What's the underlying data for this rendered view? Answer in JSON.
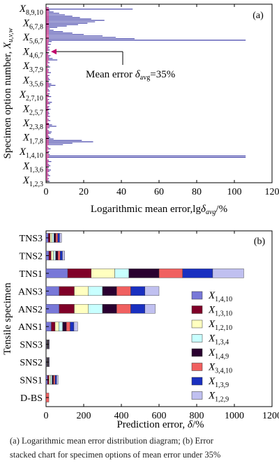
{
  "chart_data": [
    {
      "panel_label": "(a)",
      "type": "bar",
      "orientation": "horizontal",
      "xlabel": "Logarithmic mean error,lgδavg/%",
      "xlabel_parts": {
        "main": "Logarithmic mean error,lg",
        "sym": "δ",
        "sub": "avg",
        "unit": "/%"
      },
      "ylabel": "Specimen option number, Xu,v,w",
      "ylabel_parts": {
        "main": "Specimen option number, ",
        "sym": "X",
        "sub": "u,v,w"
      },
      "xlim": [
        0,
        120
      ],
      "xticks": [
        "0",
        "20",
        "40",
        "60",
        "80",
        "100",
        "120"
      ],
      "ytick_labels": [
        {
          "sym": "X",
          "sub": "1,2,3"
        },
        {
          "sym": "X",
          "sub": "1,3,6"
        },
        {
          "sym": "X",
          "sub": "1,4,10"
        },
        {
          "sym": "X",
          "sub": "1,7,8"
        },
        {
          "sym": "X",
          "sub": "2,3,8"
        },
        {
          "sym": "X",
          "sub": "2,5,7"
        },
        {
          "sym": "X",
          "sub": "2,7,10"
        },
        {
          "sym": "X",
          "sub": "3,5,6"
        },
        {
          "sym": "X",
          "sub": "3,7,9"
        },
        {
          "sym": "X",
          "sub": "4,6,7"
        },
        {
          "sym": "X",
          "sub": "5,6,7"
        },
        {
          "sym": "X",
          "sub": "6,7,8"
        },
        {
          "sym": "X",
          "sub": "8,9,10"
        }
      ],
      "annotation": {
        "text": "Mean error  δavg=35%",
        "main": "Mean error  ",
        "sym": "δ",
        "sub": "avg",
        "rest": "=35%",
        "arrow_target_value": 1.5
      },
      "bar_color": "#3a3aa6",
      "highlight_color": "#c0006a",
      "values": [
        2,
        1.2,
        1.5,
        0.8,
        2.2,
        1.4,
        0.9,
        1.8,
        2.6,
        1.3,
        0.7,
        2.3,
        1.6,
        1,
        2.8,
        1.5,
        0.6,
        106,
        106,
        2,
        1.2,
        1.7,
        0.9,
        2.4,
        1.3,
        0.8,
        9,
        14,
        25,
        19,
        4,
        2.2,
        1.6,
        1.1,
        2.5,
        3,
        1.4,
        0.8,
        1.9,
        5.5,
        3.2,
        1.6,
        0.9,
        2.3,
        1.4,
        0.7,
        2.1,
        1.2,
        1.8,
        1.5,
        0.9,
        2.4,
        1.3,
        1.7,
        0.6,
        2.2,
        3.1,
        1.1,
        1.6,
        0.8,
        2.7,
        1.3,
        1.9,
        0.7,
        2,
        1.5,
        1,
        2.3,
        5,
        2.8,
        1.4,
        0.9,
        2.1,
        1.6,
        1.1,
        1.8,
        0.6,
        2.6,
        1.3,
        1.5,
        0.9,
        2.2,
        1.4,
        0.8,
        1.9,
        1.2,
        6,
        3.5,
        1.7,
        2.4,
        1.1,
        1.6,
        0.7,
        2,
        1.3,
        1.8,
        0.9,
        2.5,
        1.4,
        3,
        106,
        47,
        37,
        30,
        20,
        14,
        9,
        4,
        2,
        6,
        11,
        17,
        22,
        26,
        31,
        24,
        18,
        14,
        10,
        7,
        4,
        2,
        46,
        1.5
      ],
      "highlight_values": [
        1.3,
        1,
        1.2,
        0.8,
        1.4,
        1.1,
        0.9,
        1.3,
        1.5,
        1,
        0.8,
        1.4,
        1.2,
        0.9,
        1.5,
        1.1,
        0.8,
        1.5,
        1.5,
        1.3,
        1,
        1.2,
        0.9,
        1.4,
        1.1,
        0.8,
        1.5,
        1.5,
        1.5,
        1.5,
        1.3,
        1.4,
        1.2,
        1,
        1.5,
        1.5,
        1.1,
        0.8,
        1.3,
        1.5,
        1.5,
        1.2,
        0.9,
        1.4,
        1.1,
        0.8,
        1.3,
        1,
        1.2,
        1.1,
        0.9,
        1.4,
        1.1,
        1.2,
        0.7,
        1.4,
        1.5,
        1,
        1.2,
        0.8,
        1.5,
        1.1,
        1.3,
        0.8,
        1.3,
        1.1,
        0.9,
        1.4,
        1.5,
        1.5,
        1.1,
        0.9,
        1.3,
        1.2,
        1,
        1.2,
        0.7,
        1.5,
        1.1,
        1.1,
        0.9,
        1.4,
        1.1,
        0.8,
        1.3,
        1,
        1.5,
        1.5,
        1.2,
        1.4,
        1,
        1.2,
        0.8,
        1.3,
        1.1,
        1.2,
        0.9,
        1.5,
        1.1,
        1.5,
        1.5,
        1.5,
        1.5,
        1.5,
        1.5,
        1.5,
        1.5,
        1.5,
        1.3,
        1.5,
        1.5,
        1.5,
        1.5,
        1.5,
        1.5,
        1.5,
        1.5,
        1.5,
        1.5,
        1.5,
        1.5,
        1.3,
        1.5,
        1.1
      ]
    },
    {
      "panel_label": "(b)",
      "type": "bar",
      "orientation": "horizontal",
      "stacked": true,
      "xlabel": "Prediction error, δ/%",
      "xlabel_parts": {
        "main": "Prediction error, ",
        "sym": "δ",
        "unit": "/%"
      },
      "ylabel": "Tensile specimen",
      "xlim": [
        0,
        1200
      ],
      "xticks": [
        "0",
        "200",
        "400",
        "600",
        "800",
        "1000",
        "1200"
      ],
      "categories": [
        "D-BS",
        "SNS1",
        "SNS2",
        "SNS3",
        "ANS1",
        "ANS2",
        "ANS3",
        "TNS1",
        "TNS2",
        "TNS3"
      ],
      "series": [
        {
          "name": "X1,4,10",
          "sym": "X",
          "sub": "1,4,10",
          "color": "#7878d8",
          "values": [
            0,
            8,
            3,
            3,
            28,
            70,
            70,
            115,
            15,
            12
          ]
        },
        {
          "name": "X1,3,10",
          "sym": "X",
          "sub": "1,3,10",
          "color": "#800028",
          "values": [
            0,
            8,
            2,
            2,
            20,
            80,
            80,
            125,
            12,
            10
          ]
        },
        {
          "name": "X1,2,10",
          "sym": "X",
          "sub": "1,2,10",
          "color": "#ffffc0",
          "values": [
            0,
            8,
            2,
            2,
            20,
            75,
            75,
            125,
            12,
            10
          ]
        },
        {
          "name": "X1,3,4",
          "sym": "X",
          "sub": "1,3,4",
          "color": "#c8ffff",
          "values": [
            0,
            8,
            2,
            2,
            20,
            75,
            75,
            75,
            12,
            10
          ]
        },
        {
          "name": "X1,4,9",
          "sym": "X",
          "sub": "1,4,9",
          "color": "#2a0030",
          "values": [
            0,
            8,
            2,
            2,
            20,
            75,
            75,
            160,
            12,
            10
          ]
        },
        {
          "name": "X3,4,10",
          "sym": "X",
          "sub": "3,4,10",
          "color": "#f06060",
          "values": [
            15,
            8,
            2,
            2,
            20,
            75,
            75,
            125,
            12,
            10
          ]
        },
        {
          "name": "X1,3,9",
          "sym": "X",
          "sub": "1,3,9",
          "color": "#1a30c0",
          "values": [
            0,
            8,
            2,
            2,
            20,
            75,
            75,
            160,
            12,
            10
          ]
        },
        {
          "name": "X1,2,9",
          "sym": "X",
          "sub": "1,2,9",
          "color": "#c0c0f0",
          "values": [
            0,
            8,
            3,
            3,
            20,
            55,
            75,
            165,
            12,
            10
          ]
        }
      ]
    }
  ],
  "caption": {
    "line1": "(a) Logarithmic mean error distribution diagram; (b) Error",
    "line2": "stacked chart for specimen options of mean error under 35%"
  }
}
